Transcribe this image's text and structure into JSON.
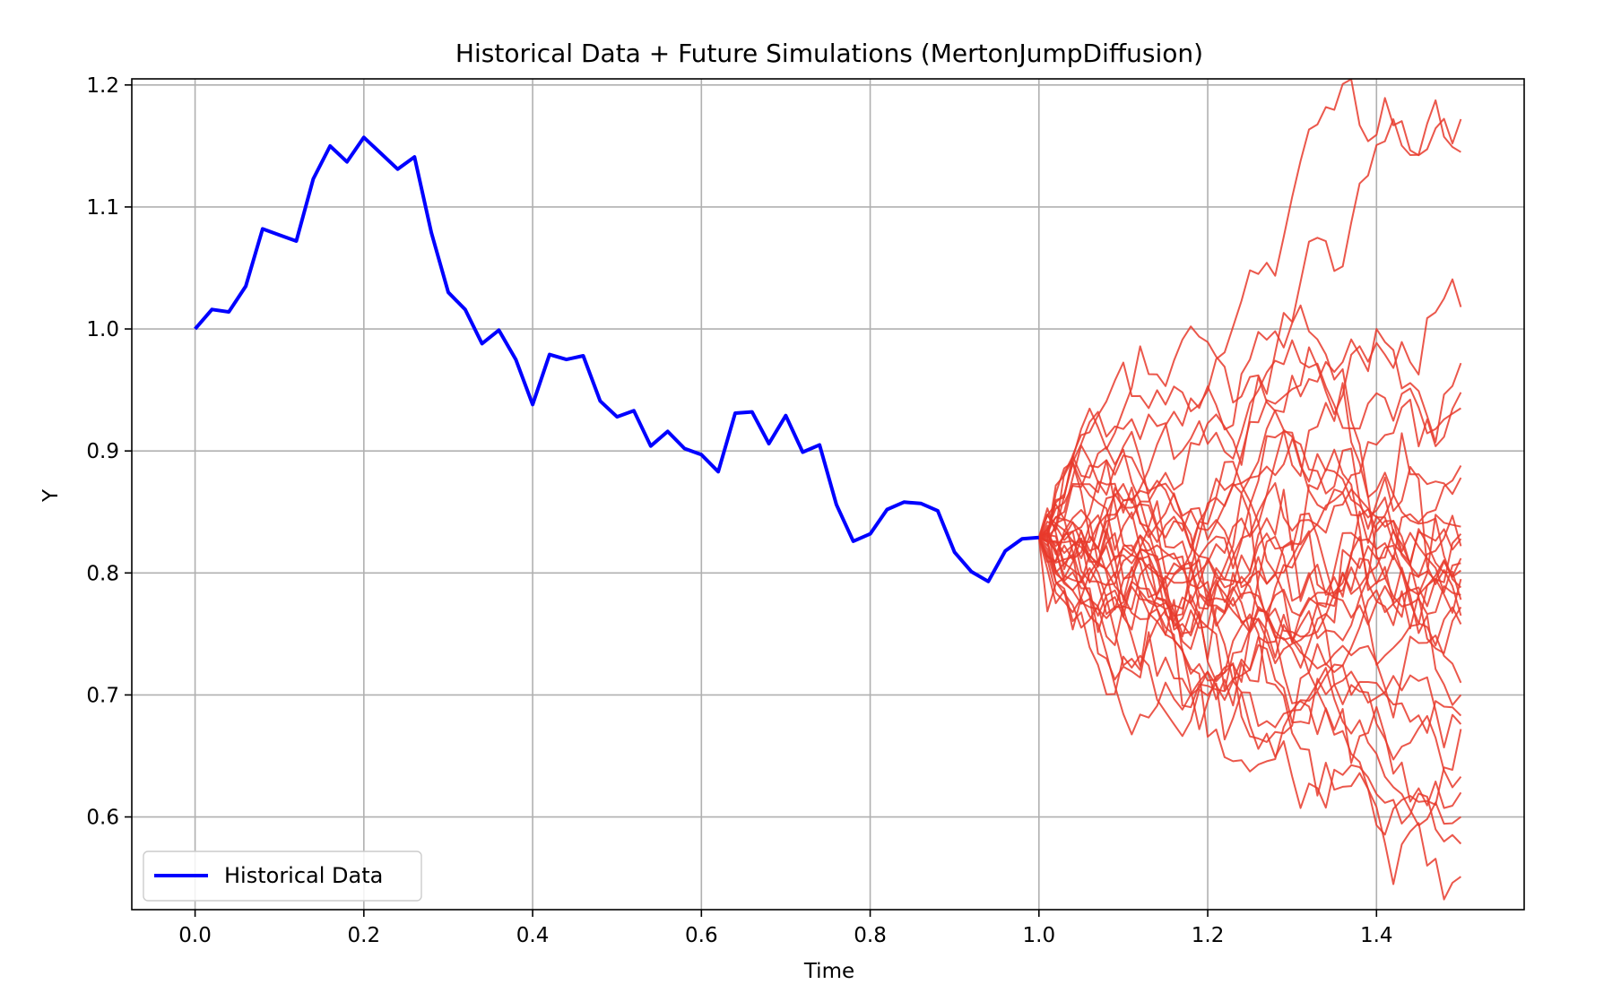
{
  "chart_data": {
    "type": "line",
    "title": "Historical Data + Future Simulations (MertonJumpDiffusion)",
    "xlabel": "Time",
    "ylabel": "Y",
    "xlim": [
      -0.075,
      1.575
    ],
    "ylim": [
      0.524,
      1.205
    ],
    "xticks": [
      0.0,
      0.2,
      0.4,
      0.6,
      0.8,
      1.0,
      1.2,
      1.4
    ],
    "xtick_labels": [
      "0.0",
      "0.2",
      "0.4",
      "0.6",
      "0.8",
      "1.0",
      "1.2",
      "1.4"
    ],
    "yticks": [
      0.6,
      0.7,
      0.8,
      0.9,
      1.0,
      1.1,
      1.2
    ],
    "ytick_labels": [
      "0.6",
      "0.7",
      "0.8",
      "0.9",
      "1.0",
      "1.1",
      "1.2"
    ],
    "grid": true,
    "legend": {
      "position": "lower left",
      "entries": [
        {
          "label": "Historical Data",
          "color": "#0000ff"
        }
      ]
    },
    "colors": {
      "historical": "#0000ff",
      "simulations": "#e8392c",
      "grid": "#b0b0b0"
    },
    "historical": {
      "name": "Historical Data",
      "x": [
        0.0,
        0.02,
        0.04,
        0.06,
        0.08,
        0.1,
        0.12,
        0.14,
        0.16,
        0.18,
        0.2,
        0.22,
        0.24,
        0.26,
        0.28,
        0.3,
        0.32,
        0.34,
        0.36,
        0.38,
        0.4,
        0.42,
        0.44,
        0.46,
        0.48,
        0.5,
        0.52,
        0.54,
        0.56,
        0.58,
        0.6,
        0.62,
        0.64,
        0.66,
        0.68,
        0.7,
        0.72,
        0.74,
        0.76,
        0.78,
        0.8,
        0.82,
        0.84,
        0.86,
        0.88,
        0.9,
        0.92,
        0.94,
        0.96,
        0.98,
        1.0
      ],
      "y": [
        1.0,
        1.016,
        1.014,
        1.035,
        1.082,
        1.077,
        1.072,
        1.123,
        1.15,
        1.137,
        1.157,
        1.144,
        1.131,
        1.141,
        1.079,
        1.03,
        1.016,
        0.988,
        0.999,
        0.975,
        0.938,
        0.979,
        0.975,
        0.978,
        0.941,
        0.928,
        0.933,
        0.904,
        0.916,
        0.902,
        0.897,
        0.883,
        0.931,
        0.932,
        0.906,
        0.929,
        0.899,
        0.905,
        0.856,
        0.826,
        0.832,
        0.852,
        0.858,
        0.857,
        0.851,
        0.817,
        0.801,
        0.793,
        0.818,
        0.828,
        0.829
      ]
    },
    "simulations": {
      "x_start": 1.0,
      "x_end": 1.5,
      "steps": 50,
      "final_values": [
        1.172,
        1.145,
        1.018,
        0.972,
        0.948,
        0.935,
        0.888,
        0.878,
        0.838,
        0.832,
        0.828,
        0.822,
        0.812,
        0.808,
        0.802,
        0.795,
        0.788,
        0.782,
        0.778,
        0.772,
        0.765,
        0.758,
        0.71,
        0.7,
        0.683,
        0.676,
        0.672,
        0.633,
        0.62,
        0.6,
        0.578,
        0.551
      ]
    }
  }
}
